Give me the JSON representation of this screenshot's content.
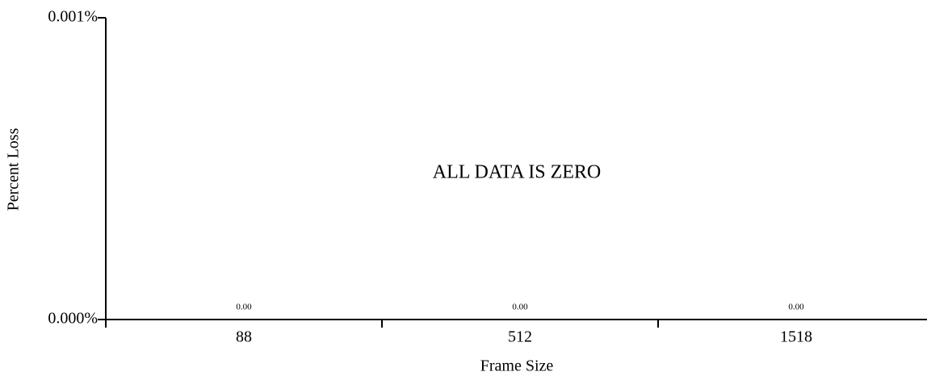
{
  "chart_data": {
    "type": "bar",
    "categories": [
      "88",
      "512",
      "1518"
    ],
    "values": [
      0,
      0,
      0
    ],
    "value_labels": [
      "0.00",
      "0.00",
      "0.00"
    ],
    "color": "#4472c4",
    "ylim": [
      0,
      0.001
    ],
    "yticks": [
      {
        "value": 0,
        "label": "0.000%"
      },
      {
        "value": 0.001,
        "label": "0.001%"
      }
    ],
    "xlabel": "Frame Size",
    "ylabel": "Percent Loss",
    "annotation": "ALL DATA IS ZERO"
  }
}
